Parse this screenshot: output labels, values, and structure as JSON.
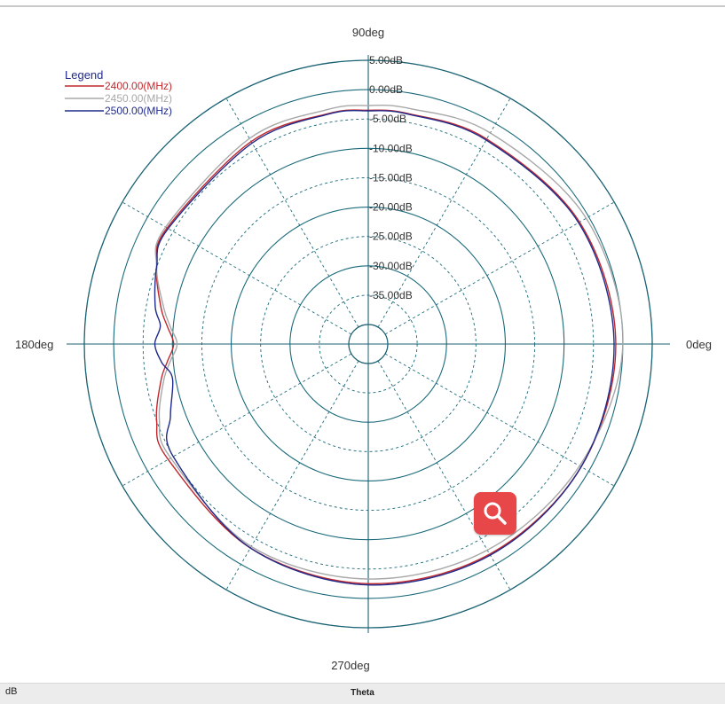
{
  "chart_data": {
    "type": "polar",
    "angle_labels": [
      {
        "angle": 90,
        "text": "90deg"
      },
      {
        "angle": 180,
        "text": "180deg"
      },
      {
        "angle": 0,
        "text": "0deg"
      },
      {
        "angle": 270,
        "text": "270deg"
      }
    ],
    "radial_ticks": [
      {
        "db": 5,
        "text": "5.00dB"
      },
      {
        "db": 0,
        "text": "0.00dB"
      },
      {
        "db": -5,
        "text": "-5.00dB"
      },
      {
        "db": -10,
        "text": "-10.00dB"
      },
      {
        "db": -15,
        "text": "-15.00dB"
      },
      {
        "db": -20,
        "text": "-20.00dB"
      },
      {
        "db": -25,
        "text": "-25.00dB"
      },
      {
        "db": -30,
        "text": "-30.00dB"
      },
      {
        "db": -35,
        "text": "-35.00dB"
      }
    ],
    "radial_range": [
      -40,
      5
    ],
    "angle_grid_step_deg": 30,
    "grid": true,
    "legend": {
      "title": "Legend",
      "position": "top-left"
    },
    "series": [
      {
        "name": "2400.00(MHz)",
        "color": "#c0282d",
        "theta": [
          0,
          30,
          60,
          80,
          90,
          100,
          120,
          150,
          160,
          170,
          175,
          180,
          185,
          190,
          200,
          210,
          240,
          270,
          300,
          330
        ],
        "r": [
          -1.2,
          -1.8,
          -3,
          -3.5,
          -3.5,
          -3.5,
          -3.5,
          -3.8,
          -5,
          -7.5,
          -9,
          -10.2,
          -9,
          -7.5,
          -5,
          -4,
          -3.2,
          -2.5,
          -2,
          -1.5
        ]
      },
      {
        "name": "2450.00(MHz)",
        "color": "#a8a8a8",
        "theta": [
          0,
          30,
          60,
          80,
          90,
          100,
          120,
          150,
          160,
          170,
          175,
          180,
          185,
          190,
          200,
          210,
          240,
          270,
          300,
          330
        ],
        "r": [
          0,
          -0.5,
          -1.8,
          -2.6,
          -2.7,
          -2.8,
          -2.9,
          -3.5,
          -5,
          -8,
          -9.5,
          -10.8,
          -9.5,
          -8,
          -5.5,
          -4.5,
          -3.5,
          -3.3,
          -2.8,
          -1.8
        ]
      },
      {
        "name": "2500.00(MHz)",
        "color": "#1f2a8a",
        "theta": [
          0,
          30,
          60,
          80,
          90,
          100,
          120,
          150,
          160,
          170,
          175,
          180,
          185,
          190,
          200,
          210,
          240,
          270,
          300,
          330
        ],
        "r": [
          -1.5,
          -2,
          -3.2,
          -3.6,
          -3.6,
          -3.6,
          -3.8,
          -4,
          -5,
          -6.5,
          -7.8,
          -7,
          -8,
          -9.5,
          -7.5,
          -5,
          -3.2,
          -2.3,
          -1.8,
          -1.5
        ]
      }
    ]
  },
  "status_bar": {
    "left_text": "dB",
    "center_text": "Theta"
  },
  "zoom_button": {
    "icon": "magnifier-icon",
    "color": "#e8474a"
  }
}
